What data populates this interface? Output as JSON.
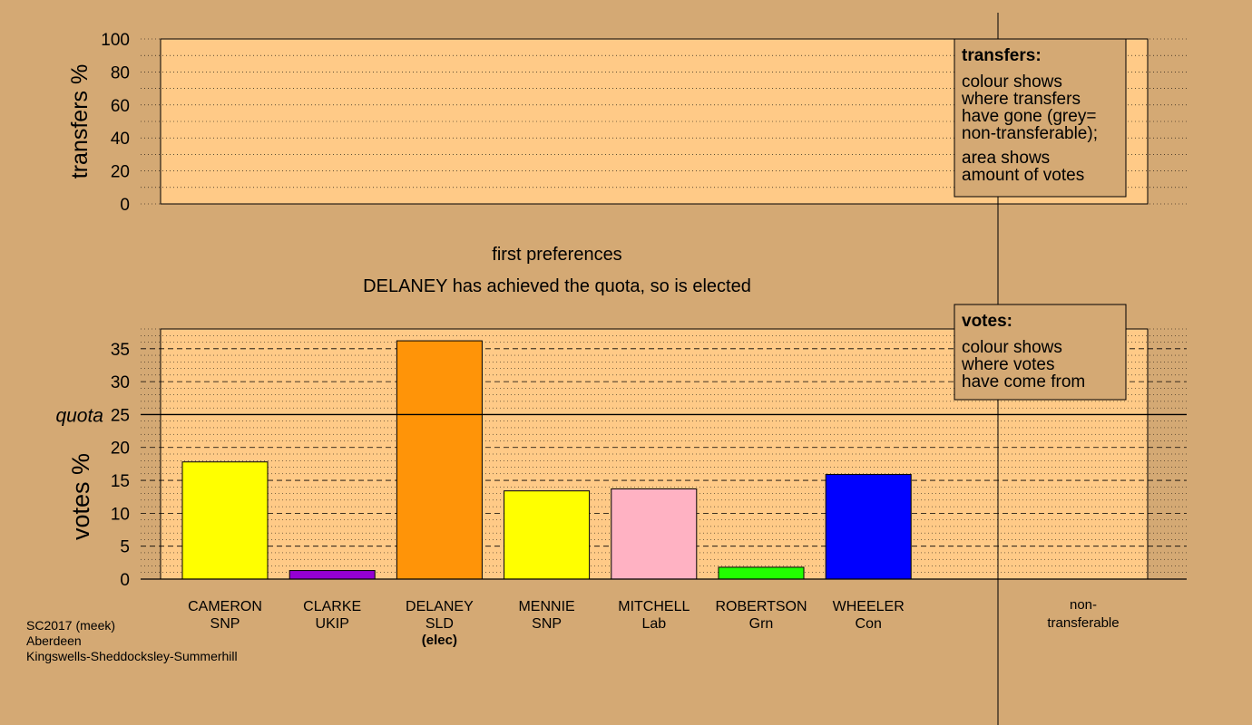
{
  "colors": {
    "background": "#d4a974",
    "plot_bg": "#ffca87",
    "legend_bg": "#d4a974"
  },
  "chart_data": [
    {
      "type": "bar",
      "title": "",
      "ylabel": "transfers %",
      "ylim": [
        0,
        100
      ],
      "yticks": [
        "0",
        "20",
        "40",
        "60",
        "80",
        "100"
      ],
      "categories": [],
      "values": [],
      "legend": {
        "title": "transfers:",
        "lines1": [
          "colour shows",
          "where transfers",
          "have gone (grey=",
          "non-transferable);"
        ],
        "lines2": [
          "area shows",
          "amount of votes"
        ],
        "position": "top-right"
      }
    },
    {
      "type": "bar",
      "title": "first preferences",
      "subtitle": "DELANEY has achieved the quota, so is elected",
      "ylabel": "votes %",
      "ylim": [
        0,
        38
      ],
      "yticks": [
        "0",
        "5",
        "10",
        "15",
        "20",
        "25",
        "30",
        "35"
      ],
      "quota": {
        "label": "quota",
        "value": 25
      },
      "categories": [
        {
          "name": "CAMERON",
          "party": "SNP",
          "note": "",
          "value": 17.8,
          "color": "#ffff00"
        },
        {
          "name": "CLARKE",
          "party": "UKIP",
          "note": "",
          "value": 1.3,
          "color": "#9400d3"
        },
        {
          "name": "DELANEY",
          "party": "SLD",
          "note": "(elec)",
          "value": 36.2,
          "color": "#ff9408"
        },
        {
          "name": "MENNIE",
          "party": "SNP",
          "note": "",
          "value": 13.4,
          "color": "#ffff00"
        },
        {
          "name": "MITCHELL",
          "party": "Lab",
          "note": "",
          "value": 13.7,
          "color": "#ffb2c3"
        },
        {
          "name": "ROBERTSON",
          "party": "Grn",
          "note": "",
          "value": 1.8,
          "color": "#22ff00"
        },
        {
          "name": "WHEELER",
          "party": "Con",
          "note": "",
          "value": 15.9,
          "color": "#0000ff"
        }
      ],
      "nontransferable": {
        "line1": "non-",
        "line2": "transferable",
        "value": 0
      },
      "legend": {
        "title": "votes:",
        "lines1": [
          "colour shows",
          "where votes",
          "have come from"
        ],
        "position": "top-right"
      }
    }
  ],
  "footer": {
    "line1": "SC2017 (meek)",
    "line2": "Aberdeen",
    "line3": "Kingswells-Sheddocksley-Summerhill"
  }
}
